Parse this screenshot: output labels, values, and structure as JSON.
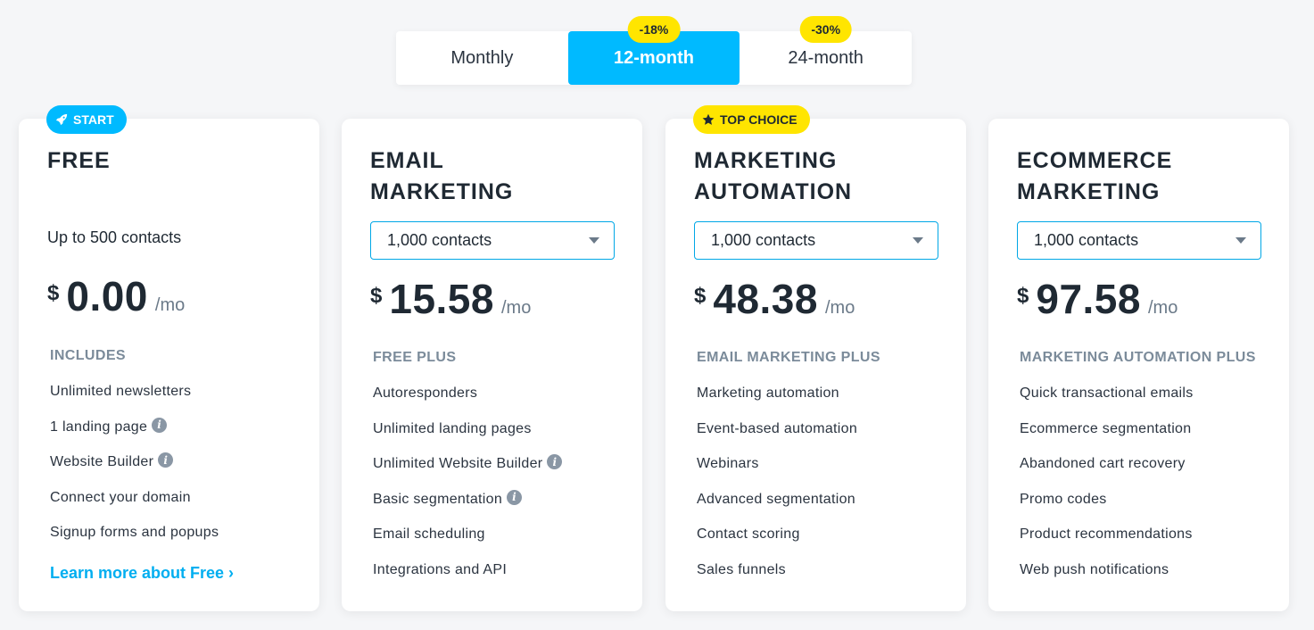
{
  "billing": {
    "options": [
      {
        "label": "Monthly",
        "badge": null
      },
      {
        "label": "12-month",
        "badge": "-18%"
      },
      {
        "label": "24-month",
        "badge": "-30%"
      }
    ],
    "selected": "12-month"
  },
  "colors": {
    "accent": "#00baff",
    "highlight": "#ffe500",
    "link": "#00aef0",
    "muted": "#7b8b9a"
  },
  "plans": [
    {
      "tag": {
        "label": "START",
        "icon": "rocket-icon"
      },
      "title": "FREE",
      "contacts": "Up to 500 contacts",
      "currency": "$",
      "price": "0.00",
      "period": "/mo",
      "section": "INCLUDES",
      "features": [
        {
          "label": "Unlimited newsletters",
          "info": false
        },
        {
          "label": "1 landing page",
          "info": true
        },
        {
          "label": "Website Builder",
          "info": true
        },
        {
          "label": "Connect your domain",
          "info": false
        },
        {
          "label": "Signup forms and popups",
          "info": false
        }
      ],
      "link": "Learn more about Free ›"
    },
    {
      "title": "EMAIL\nMARKETING",
      "contacts_select": "1,000 contacts",
      "currency": "$",
      "price": "15.58",
      "period": "/mo",
      "section": "FREE PLUS",
      "features": [
        {
          "label": "Autoresponders",
          "info": false
        },
        {
          "label": "Unlimited landing pages",
          "info": false
        },
        {
          "label": "Unlimited Website Builder",
          "info": true
        },
        {
          "label": "Basic segmentation",
          "info": true
        },
        {
          "label": "Email scheduling",
          "info": false
        },
        {
          "label": "Integrations and API",
          "info": false
        }
      ]
    },
    {
      "tag": {
        "label": "TOP CHOICE",
        "icon": "star-icon"
      },
      "title": "MARKETING\nAUTOMATION",
      "contacts_select": "1,000 contacts",
      "currency": "$",
      "price": "48.38",
      "period": "/mo",
      "section": "EMAIL MARKETING PLUS",
      "features": [
        {
          "label": "Marketing automation",
          "info": false
        },
        {
          "label": "Event-based automation",
          "info": false
        },
        {
          "label": "Webinars",
          "info": false
        },
        {
          "label": "Advanced segmentation",
          "info": false
        },
        {
          "label": "Contact scoring",
          "info": false
        },
        {
          "label": "Sales funnels",
          "info": false
        }
      ]
    },
    {
      "title": "ECOMMERCE\nMARKETING",
      "contacts_select": "1,000 contacts",
      "currency": "$",
      "price": "97.58",
      "period": "/mo",
      "section": "MARKETING AUTOMATION PLUS",
      "features": [
        {
          "label": "Quick transactional emails",
          "info": false
        },
        {
          "label": "Ecommerce segmentation",
          "info": false
        },
        {
          "label": "Abandoned cart recovery",
          "info": false
        },
        {
          "label": "Promo codes",
          "info": false
        },
        {
          "label": "Product recommendations",
          "info": false
        },
        {
          "label": "Web push notifications",
          "info": false
        }
      ]
    }
  ]
}
